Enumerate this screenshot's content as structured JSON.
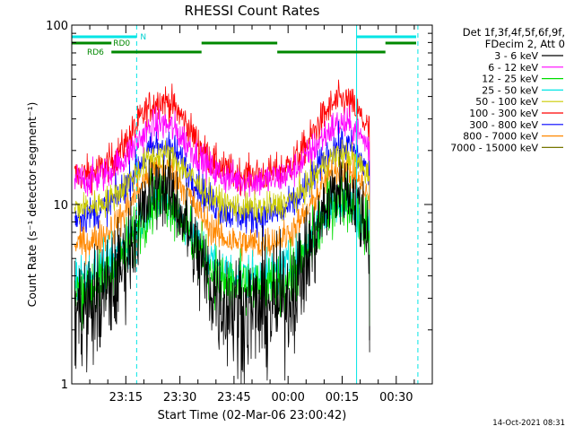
{
  "chart_data": {
    "type": "line",
    "title": "RHESSI Count Rates",
    "xlabel": "Start Time (02-Mar-06 23:00:42)",
    "ylabel": "Count Rate (s⁻¹ detector segment⁻¹)",
    "yscale": "log",
    "ylim": [
      1,
      100
    ],
    "xlim_minutes": [
      0,
      100
    ],
    "x_ticks": [
      {
        "minute": 15,
        "label": "23:15"
      },
      {
        "minute": 30,
        "label": "23:30"
      },
      {
        "minute": 45,
        "label": "23:45"
      },
      {
        "minute": 60,
        "label": "00:00"
      },
      {
        "minute": 75,
        "label": "00:15"
      },
      {
        "minute": 90,
        "label": "00:30"
      }
    ],
    "y_tick_labels": [
      {
        "value": 1,
        "label": "1"
      },
      {
        "value": 10,
        "label": "10"
      },
      {
        "value": 100,
        "label": "100"
      }
    ],
    "legend_header": [
      "Det 1f,3f,4f,5f,6f,9f,",
      "FDecim 2, Att 0"
    ],
    "legend_position": "right",
    "series": [
      {
        "name": "3 - 6 keV",
        "color": "#000000",
        "base": 2.5,
        "peak": 12.5,
        "noise": 0.22
      },
      {
        "name": "6 - 12 keV",
        "color": "#ff00ff",
        "base": 13.5,
        "peak": 28,
        "noise": 0.07
      },
      {
        "name": "12 - 25 keV",
        "color": "#00dd00",
        "base": 3.3,
        "peak": 11,
        "noise": 0.12
      },
      {
        "name": "25 - 50 keV",
        "color": "#00e5e5",
        "base": 4.0,
        "peak": 10.5,
        "noise": 0.09
      },
      {
        "name": "50 - 100 keV",
        "color": "#cccc00",
        "base": 9.5,
        "peak": 19,
        "noise": 0.06
      },
      {
        "name": "100 - 300 keV",
        "color": "#ff0000",
        "base": 14.5,
        "peak": 38,
        "noise": 0.07
      },
      {
        "name": "300 - 800 keV",
        "color": "#0000ff",
        "base": 8.5,
        "peak": 21.5,
        "noise": 0.07
      },
      {
        "name": "800 - 7000 keV",
        "color": "#ff8800",
        "base": 6.0,
        "peak": 16,
        "noise": 0.07
      },
      {
        "name": "7000 - 15000 keV",
        "color": "#777700",
        "base": null,
        "peak": null,
        "noise": 0
      }
    ],
    "annotations": {
      "night_lines_solid_minutes": [
        0,
        79
      ],
      "night_lines_dashed_minutes": [
        18,
        96
      ],
      "night_label": "N",
      "rd0_label": "RD0",
      "rd6_label": "RD6"
    }
  },
  "timestamp": "14-Oct-2021 08:31"
}
